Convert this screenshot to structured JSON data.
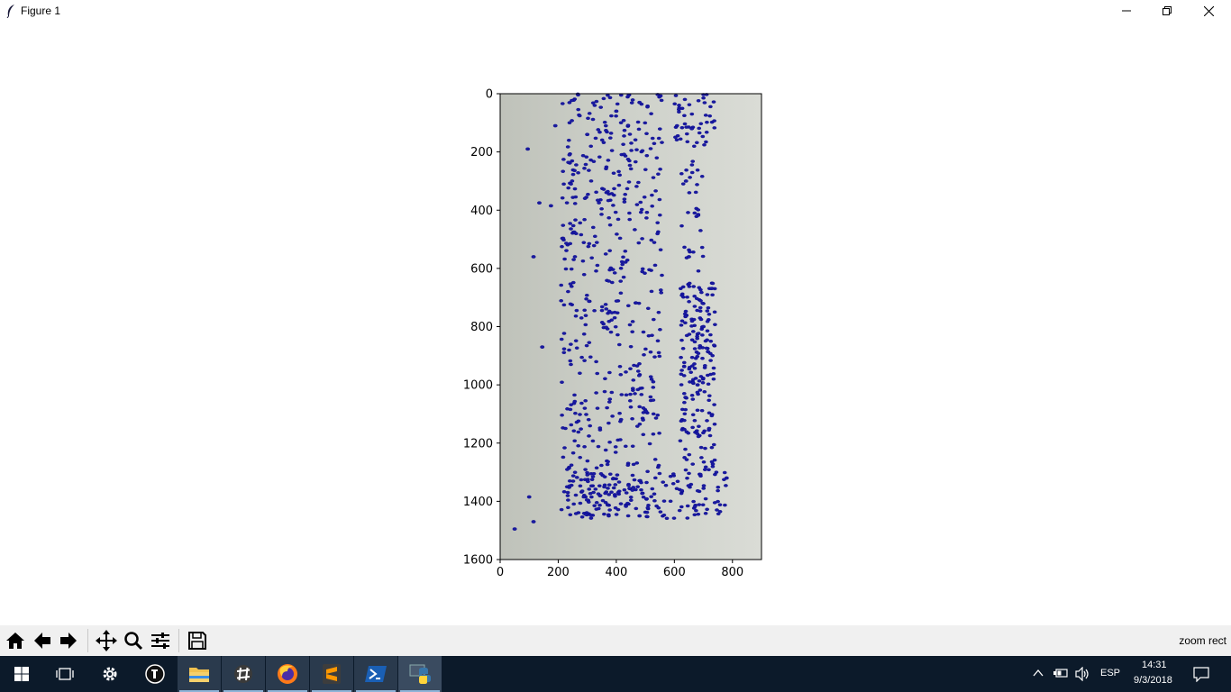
{
  "window": {
    "title": "Figure 1",
    "icons": [
      "feather-icon",
      "minimize-icon",
      "restore-icon",
      "close-icon"
    ]
  },
  "colors": {
    "image_background": "#c9ccc4",
    "marker_fill": "#1a1aa0",
    "marker_edge": "#00008b",
    "toolbar_bg": "#f0f0f0",
    "taskbar_bg": "#0c1a2a"
  },
  "chart_data": {
    "type": "scatter",
    "title": "",
    "xlabel": "",
    "ylabel": "",
    "xlim": [
      0,
      900
    ],
    "ylim": [
      1600,
      0
    ],
    "x_ticks": [
      "0",
      "200",
      "400",
      "600",
      "800"
    ],
    "y_ticks": [
      "0",
      "200",
      "400",
      "600",
      "800",
      "1000",
      "1200",
      "1400",
      "1600"
    ],
    "grid": false,
    "legend": "none",
    "background_image": "photo-of-seeds",
    "sample_points": [
      {
        "x": 95,
        "y": 190
      },
      {
        "x": 190,
        "y": 110
      },
      {
        "x": 135,
        "y": 375
      },
      {
        "x": 175,
        "y": 385
      },
      {
        "x": 115,
        "y": 560
      },
      {
        "x": 145,
        "y": 870
      },
      {
        "x": 50,
        "y": 1495
      },
      {
        "x": 115,
        "y": 1470
      },
      {
        "x": 100,
        "y": 1385
      },
      {
        "x": 300,
        "y": 140
      },
      {
        "x": 400,
        "y": 60
      },
      {
        "x": 480,
        "y": 30
      },
      {
        "x": 660,
        "y": 120
      },
      {
        "x": 640,
        "y": 300
      },
      {
        "x": 650,
        "y": 560
      },
      {
        "x": 700,
        "y": 800
      },
      {
        "x": 680,
        "y": 1000
      },
      {
        "x": 720,
        "y": 1150
      },
      {
        "x": 480,
        "y": 1450
      },
      {
        "x": 780,
        "y": 1320
      }
    ]
  },
  "toolbar": {
    "buttons": [
      "home-icon",
      "back-icon",
      "forward-icon",
      "pan-icon",
      "zoom-icon",
      "configure-subplots-icon",
      "save-icon"
    ],
    "status": "zoom rect"
  },
  "taskbar": {
    "items": [
      "start-icon",
      "task-view-icon",
      "settings-icon",
      "inkscape-icon",
      "file-explorer-icon",
      "slack-icon",
      "firefox-icon",
      "sublime-text-icon",
      "powershell-icon",
      "python-icon"
    ],
    "language": "ESP",
    "time": "14:31",
    "date": "9/3/2018"
  }
}
